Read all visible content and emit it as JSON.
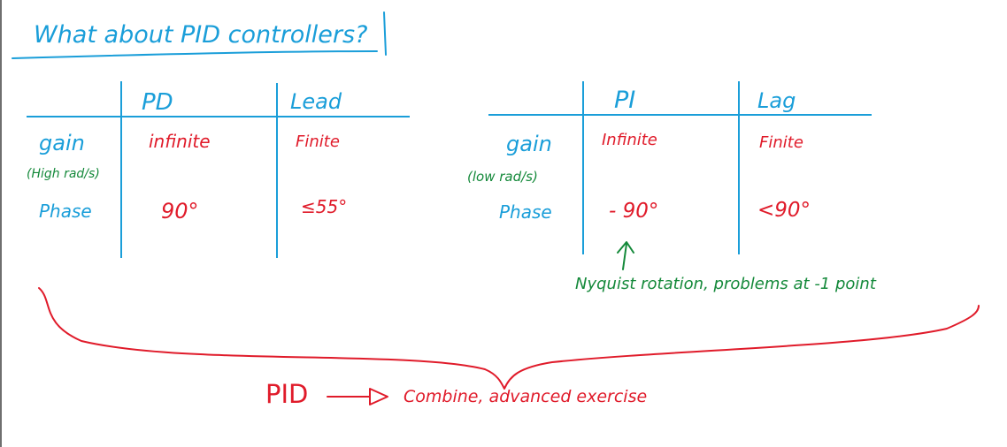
{
  "title": "What about PID controllers?",
  "left_table": {
    "col1_header": "PD",
    "col2_header": "Lead",
    "gain_label": "gain",
    "gain_sub": "(High rad/s)",
    "phase_label": "Phase",
    "pd_gain": "infinite",
    "lead_gain": "Finite",
    "pd_phase": "90°",
    "lead_phase": "≤55°"
  },
  "right_table": {
    "col1_header": "PI",
    "col2_header": "Lag",
    "gain_label": "gain",
    "gain_sub": "(low rad/s)",
    "phase_label": "Phase",
    "pi_gain": "Infinite",
    "lag_gain": "Finite",
    "pi_phase": "- 90°",
    "lag_phase": "<90°"
  },
  "note": "Nyquist rotation, problems at -1 point",
  "pid_label": "PID",
  "pid_text": "Combine, advanced exercise",
  "colors": {
    "blue": "#1a9ed9",
    "red": "#e01b2a",
    "green": "#14893a"
  }
}
